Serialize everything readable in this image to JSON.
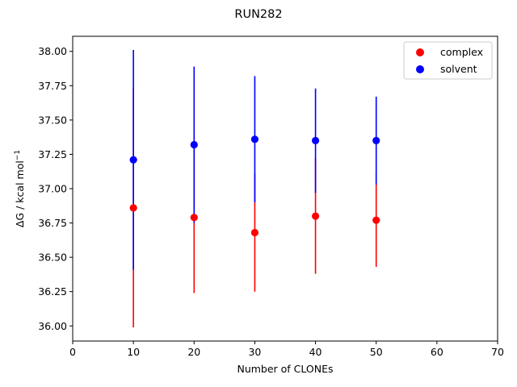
{
  "chart_data": {
    "type": "scatter",
    "title": "RUN282",
    "xlabel": "Number of CLONEs",
    "ylabel_main": "ΔG / kcal mol",
    "ylabel_sup": "−1",
    "xlim": [
      0,
      70
    ],
    "ylim": [
      35.89,
      38.11
    ],
    "xticks": [
      0,
      10,
      20,
      30,
      40,
      50,
      60,
      70
    ],
    "xtick_labels": [
      "0",
      "10",
      "20",
      "30",
      "40",
      "50",
      "60",
      "70"
    ],
    "yticks": [
      36.0,
      36.25,
      36.5,
      36.75,
      37.0,
      37.25,
      37.5,
      37.75,
      38.0
    ],
    "ytick_labels": [
      "36.00",
      "36.25",
      "36.50",
      "36.75",
      "37.00",
      "37.25",
      "37.50",
      "37.75",
      "38.00"
    ],
    "grid": false,
    "legend_position": "top-right",
    "series": [
      {
        "name": "complex",
        "color": "#ff0000",
        "x": [
          10,
          20,
          30,
          40,
          50
        ],
        "y": [
          36.86,
          36.79,
          36.68,
          36.8,
          36.77
        ],
        "err": [
          0.87,
          0.55,
          0.43,
          0.42,
          0.34
        ]
      },
      {
        "name": "solvent",
        "color": "#0000ff",
        "x": [
          10,
          20,
          30,
          40,
          50
        ],
        "y": [
          37.21,
          37.32,
          37.36,
          37.35,
          37.35
        ],
        "err": [
          0.8,
          0.57,
          0.46,
          0.38,
          0.32
        ]
      }
    ]
  }
}
